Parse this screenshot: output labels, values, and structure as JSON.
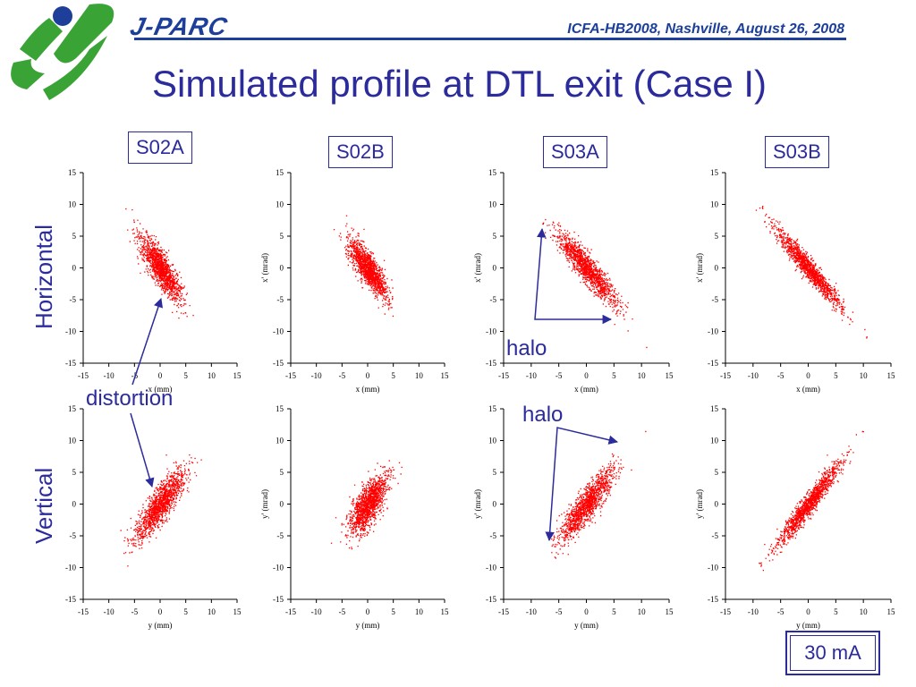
{
  "header": {
    "logo_text": "J-PARC",
    "reference": "ICFA-HB2008, Nashville, August 26, 2008"
  },
  "title": "Simulated profile at DTL exit (Case I)",
  "cases": [
    "S02A",
    "S02B",
    "S03A",
    "S03B"
  ],
  "row_labels": {
    "horizontal": "Horizontal",
    "vertical": "Vertical"
  },
  "annotations": {
    "distortion": "distortion",
    "halo_top": "halo",
    "halo_bottom": "halo"
  },
  "current_label": "30 mA",
  "plot_axes": {
    "x_ticks": [
      "-15",
      "-10",
      "-5",
      "0",
      "5",
      "10",
      "15"
    ],
    "y_ticks": [
      "15",
      "10",
      "5",
      "0",
      "-5",
      "-10",
      "-15"
    ],
    "horizontal_xlabel": "x (mm)",
    "horizontal_ylabel": "x' (mrad)",
    "vertical_xlabel": "y (mm)",
    "vertical_ylabel": "y' (mrad)"
  },
  "colors": {
    "accent": "#2b2b9b",
    "points": "#ff0000",
    "logo_green": "#3aa335",
    "logo_blue": "#1d3f9a"
  }
}
